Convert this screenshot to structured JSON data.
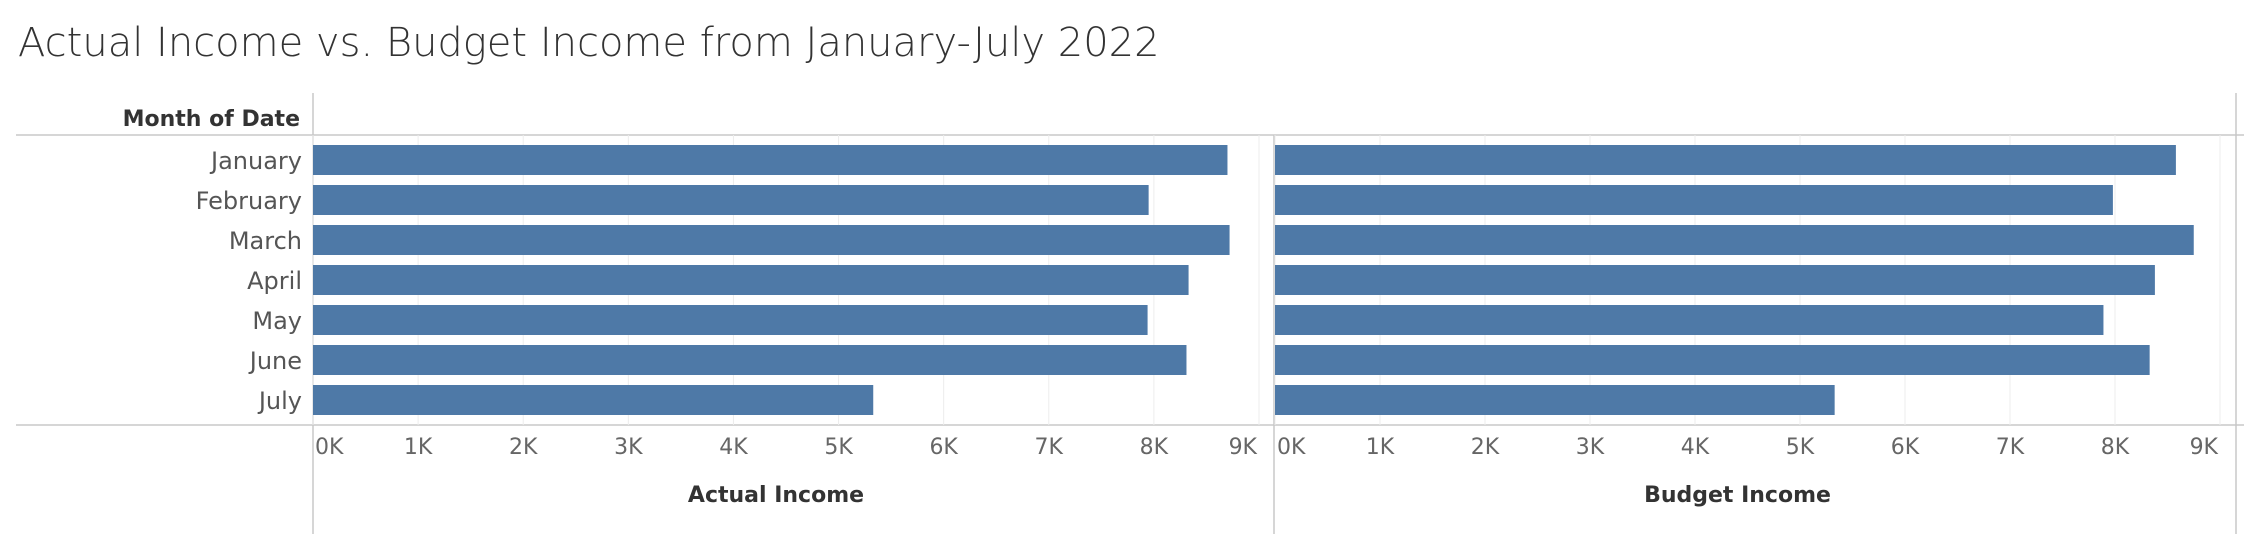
{
  "chart_data": {
    "type": "bar",
    "orientation": "horizontal",
    "title": "Actual Income vs. Budget Income from January-July 2022",
    "row_header": "Month of Date",
    "categories": [
      "January",
      "February",
      "March",
      "April",
      "May",
      "June",
      "July"
    ],
    "series": [
      {
        "name": "Actual Income",
        "values": [
          8700,
          7950,
          8720,
          8330,
          7940,
          8310,
          5330
        ]
      },
      {
        "name": "Budget Income",
        "values": [
          8580,
          7980,
          8750,
          8380,
          7890,
          8330,
          5330
        ]
      }
    ],
    "xlim": [
      0,
      9000
    ],
    "x_ticks": [
      "0K",
      "1K",
      "2K",
      "3K",
      "4K",
      "5K",
      "6K",
      "7K",
      "8K",
      "9K"
    ],
    "grid": true,
    "bar_color": "#4e79a7"
  }
}
